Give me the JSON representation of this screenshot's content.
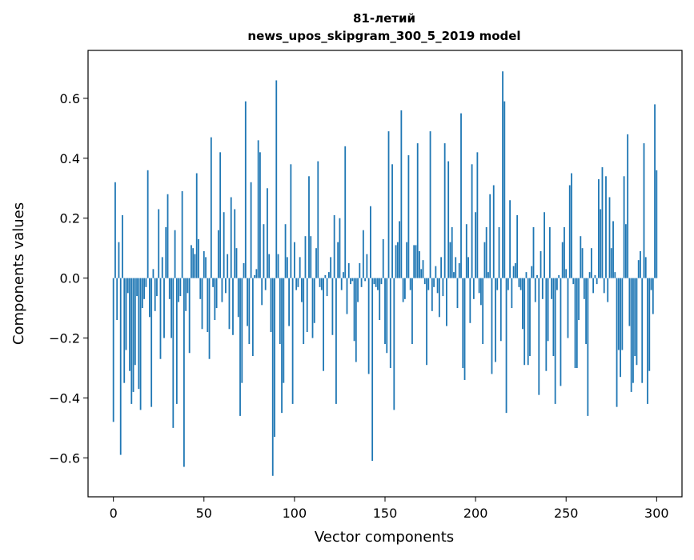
{
  "chart_data": {
    "type": "bar",
    "title_lines": [
      "81-летий",
      "news_upos_skipgram_300_5_2019 model"
    ],
    "xlabel": "Vector components",
    "ylabel": "Components values",
    "xlim": [
      -14,
      314
    ],
    "ylim": [
      -0.73,
      0.76
    ],
    "x_ticks": [
      0,
      50,
      100,
      150,
      200,
      250,
      300
    ],
    "x_tick_labels": [
      "0",
      "50",
      "100",
      "150",
      "200",
      "250",
      "300"
    ],
    "y_ticks": [
      -0.6,
      -0.4,
      -0.2,
      0.0,
      0.2,
      0.4,
      0.6
    ],
    "y_tick_labels": [
      "−0.6",
      "−0.4",
      "−0.2",
      "0.0",
      "0.2",
      "0.4",
      "0.6"
    ],
    "grid": false,
    "bar_color": "#1f77b4",
    "series": [
      {
        "values": [
          -0.48,
          0.32,
          -0.14,
          0.12,
          -0.59,
          0.21,
          -0.35,
          -0.24,
          -0.05,
          -0.31,
          -0.42,
          -0.38,
          -0.29,
          -0.06,
          -0.37,
          -0.44,
          -0.1,
          -0.07,
          -0.03,
          0.36,
          -0.13,
          -0.43,
          0.03,
          -0.11,
          -0.06,
          0.23,
          -0.27,
          0.07,
          -0.2,
          0.17,
          0.28,
          -0.07,
          -0.2,
          -0.5,
          0.16,
          -0.42,
          -0.08,
          -0.06,
          0.29,
          -0.63,
          -0.11,
          -0.05,
          -0.25,
          0.11,
          0.1,
          0.08,
          0.35,
          0.13,
          -0.07,
          -0.17,
          0.09,
          0.07,
          -0.18,
          -0.27,
          0.47,
          -0.03,
          -0.14,
          -0.1,
          0.16,
          0.42,
          -0.08,
          0.22,
          -0.05,
          0.08,
          -0.17,
          0.27,
          -0.19,
          0.23,
          0.1,
          -0.13,
          -0.46,
          -0.35,
          0.05,
          0.59,
          -0.16,
          -0.22,
          0.32,
          -0.26,
          0.01,
          0.03,
          0.46,
          0.42,
          -0.09,
          0.18,
          -0.04,
          0.3,
          0.08,
          -0.18,
          -0.66,
          -0.53,
          0.66,
          0.08,
          -0.22,
          -0.45,
          -0.35,
          0.18,
          0.07,
          -0.16,
          0.38,
          -0.42,
          0.12,
          -0.04,
          -0.03,
          0.07,
          -0.08,
          -0.22,
          0.14,
          -0.18,
          0.34,
          0.14,
          -0.2,
          -0.15,
          0.1,
          0.39,
          -0.03,
          -0.04,
          -0.31,
          0.01,
          -0.06,
          0.02,
          0.07,
          -0.19,
          0.21,
          -0.42,
          0.12,
          0.2,
          -0.04,
          0.02,
          0.44,
          -0.12,
          0.05,
          -0.02,
          -0.01,
          -0.21,
          -0.28,
          -0.08,
          0.05,
          -0.03,
          0.16,
          -0.01,
          0.08,
          -0.32,
          0.24,
          -0.61,
          -0.02,
          -0.03,
          -0.04,
          -0.14,
          -0.02,
          0.13,
          -0.22,
          -0.25,
          0.49,
          -0.3,
          0.38,
          -0.44,
          0.11,
          0.12,
          0.19,
          0.56,
          -0.08,
          -0.07,
          0.12,
          0.41,
          -0.04,
          -0.22,
          0.11,
          0.11,
          0.45,
          0.09,
          0.03,
          0.06,
          -0.02,
          -0.29,
          -0.04,
          0.49,
          -0.11,
          -0.03,
          0.04,
          -0.05,
          -0.13,
          0.07,
          -0.06,
          0.45,
          -0.16,
          0.39,
          0.12,
          0.17,
          0.02,
          0.07,
          -0.1,
          0.05,
          0.55,
          -0.3,
          -0.34,
          0.18,
          0.07,
          -0.15,
          0.38,
          -0.07,
          0.22,
          0.42,
          -0.05,
          -0.09,
          -0.22,
          0.12,
          0.17,
          0.02,
          0.28,
          -0.32,
          0.31,
          -0.28,
          -0.04,
          0.17,
          -0.21,
          0.69,
          0.59,
          -0.45,
          -0.04,
          0.26,
          -0.1,
          0.04,
          0.05,
          0.21,
          -0.03,
          -0.04,
          -0.17,
          -0.29,
          0.02,
          -0.29,
          -0.26,
          0.04,
          0.17,
          -0.08,
          0.01,
          -0.39,
          0.09,
          -0.07,
          0.22,
          -0.31,
          -0.21,
          0.17,
          -0.07,
          -0.26,
          -0.42,
          -0.04,
          0.01,
          -0.36,
          0.12,
          0.17,
          0.03,
          -0.2,
          0.31,
          0.35,
          -0.02,
          -0.3,
          -0.3,
          -0.14,
          0.14,
          0.1,
          -0.07,
          -0.22,
          -0.46,
          0.02,
          0.1,
          -0.05,
          0.01,
          -0.02,
          0.33,
          0.23,
          0.37,
          -0.05,
          0.34,
          -0.08,
          0.27,
          0.1,
          0.19,
          0.02,
          -0.43,
          -0.24,
          -0.33,
          -0.24,
          0.34,
          0.18,
          0.48,
          -0.16,
          -0.38,
          -0.35,
          -0.26,
          -0.29,
          0.06,
          0.09,
          -0.35,
          0.45,
          0.07,
          -0.42,
          -0.31,
          -0.04,
          -0.12,
          0.58,
          0.36
        ]
      }
    ]
  }
}
